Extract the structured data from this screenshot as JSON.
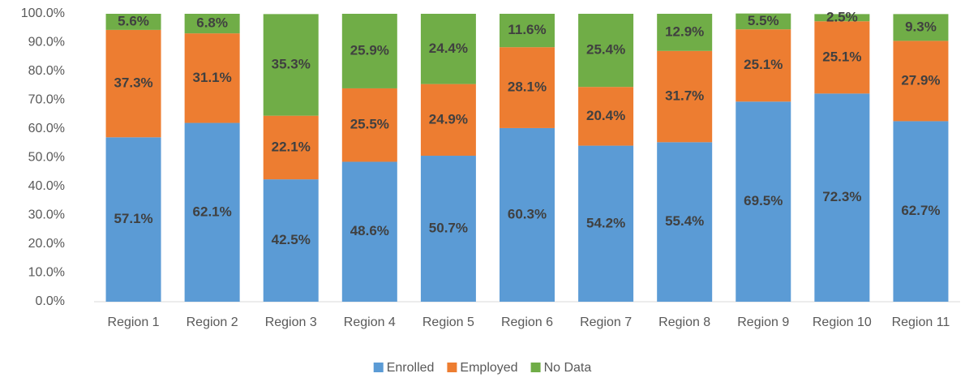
{
  "chart_data": {
    "type": "stacked_bar",
    "categories": [
      "Region 1",
      "Region 2",
      "Region 3",
      "Region 4",
      "Region 5",
      "Region 6",
      "Region 7",
      "Region 8",
      "Region 9",
      "Region 10",
      "Region 11"
    ],
    "series": [
      {
        "name": "Enrolled",
        "color": "#5b9bd5",
        "values": [
          57.1,
          62.1,
          42.5,
          48.6,
          50.7,
          60.3,
          54.2,
          55.4,
          69.5,
          72.3,
          62.7
        ],
        "value_labels": [
          "57.1%",
          "62.1%",
          "42.5%",
          "48.6%",
          "50.7%",
          "60.3%",
          "54.2%",
          "55.4%",
          "69.5%",
          "72.3%",
          "62.7%"
        ]
      },
      {
        "name": "Employed",
        "color": "#ed7d31",
        "values": [
          37.3,
          31.1,
          22.1,
          25.5,
          24.9,
          28.1,
          20.4,
          31.7,
          25.1,
          25.1,
          27.9
        ],
        "value_labels": [
          "37.3%",
          "31.1%",
          "22.1%",
          "25.5%",
          "24.9%",
          "28.1%",
          "20.4%",
          "31.7%",
          "25.1%",
          "25.1%",
          "27.9%"
        ]
      },
      {
        "name": "No Data",
        "color": "#70ad47",
        "values": [
          5.6,
          6.8,
          35.3,
          25.9,
          24.4,
          11.6,
          25.4,
          12.9,
          5.5,
          2.5,
          9.3
        ],
        "value_labels": [
          "5.6%",
          "6.8%",
          "35.3%",
          "25.9%",
          "24.4%",
          "11.6%",
          "25.4%",
          "12.9%",
          "5.5%",
          "2.5%",
          "9.3%"
        ]
      }
    ],
    "ylim": [
      0,
      100
    ],
    "yticks": [
      {
        "value": 0,
        "label": "0.0%"
      },
      {
        "value": 10,
        "label": "10.0%"
      },
      {
        "value": 20,
        "label": "20.0%"
      },
      {
        "value": 30,
        "label": "30.0%"
      },
      {
        "value": 40,
        "label": "40.0%"
      },
      {
        "value": 50,
        "label": "50.0%"
      },
      {
        "value": 60,
        "label": "60.0%"
      },
      {
        "value": 70,
        "label": "70.0%"
      },
      {
        "value": 80,
        "label": "80.0%"
      },
      {
        "value": 90,
        "label": "90.0%"
      },
      {
        "value": 100,
        "label": "100.0%"
      }
    ],
    "grid": false,
    "legend": "bottom"
  }
}
